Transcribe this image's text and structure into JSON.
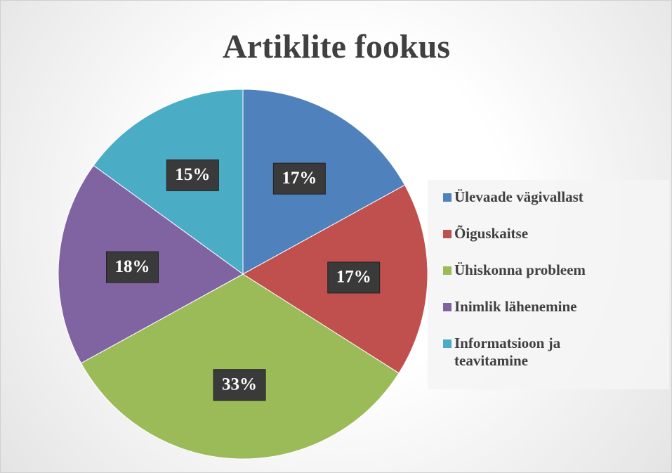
{
  "chart_data": {
    "type": "pie",
    "title": "Artiklite fookus",
    "categories": [
      "Ülevaade vägivallast",
      "Õiguskaitse",
      "Ühiskonna probleem",
      "Inimlik lähenemine",
      "Informatsioon ja teavitamine"
    ],
    "values": [
      17,
      17,
      33,
      18,
      15
    ],
    "value_labels": [
      "17%",
      "17%",
      "33%",
      "18%",
      "15%"
    ],
    "colors": [
      "#4f81bd",
      "#c0504d",
      "#9bbb59",
      "#8064a2",
      "#4bacc6"
    ],
    "legend": "right"
  }
}
